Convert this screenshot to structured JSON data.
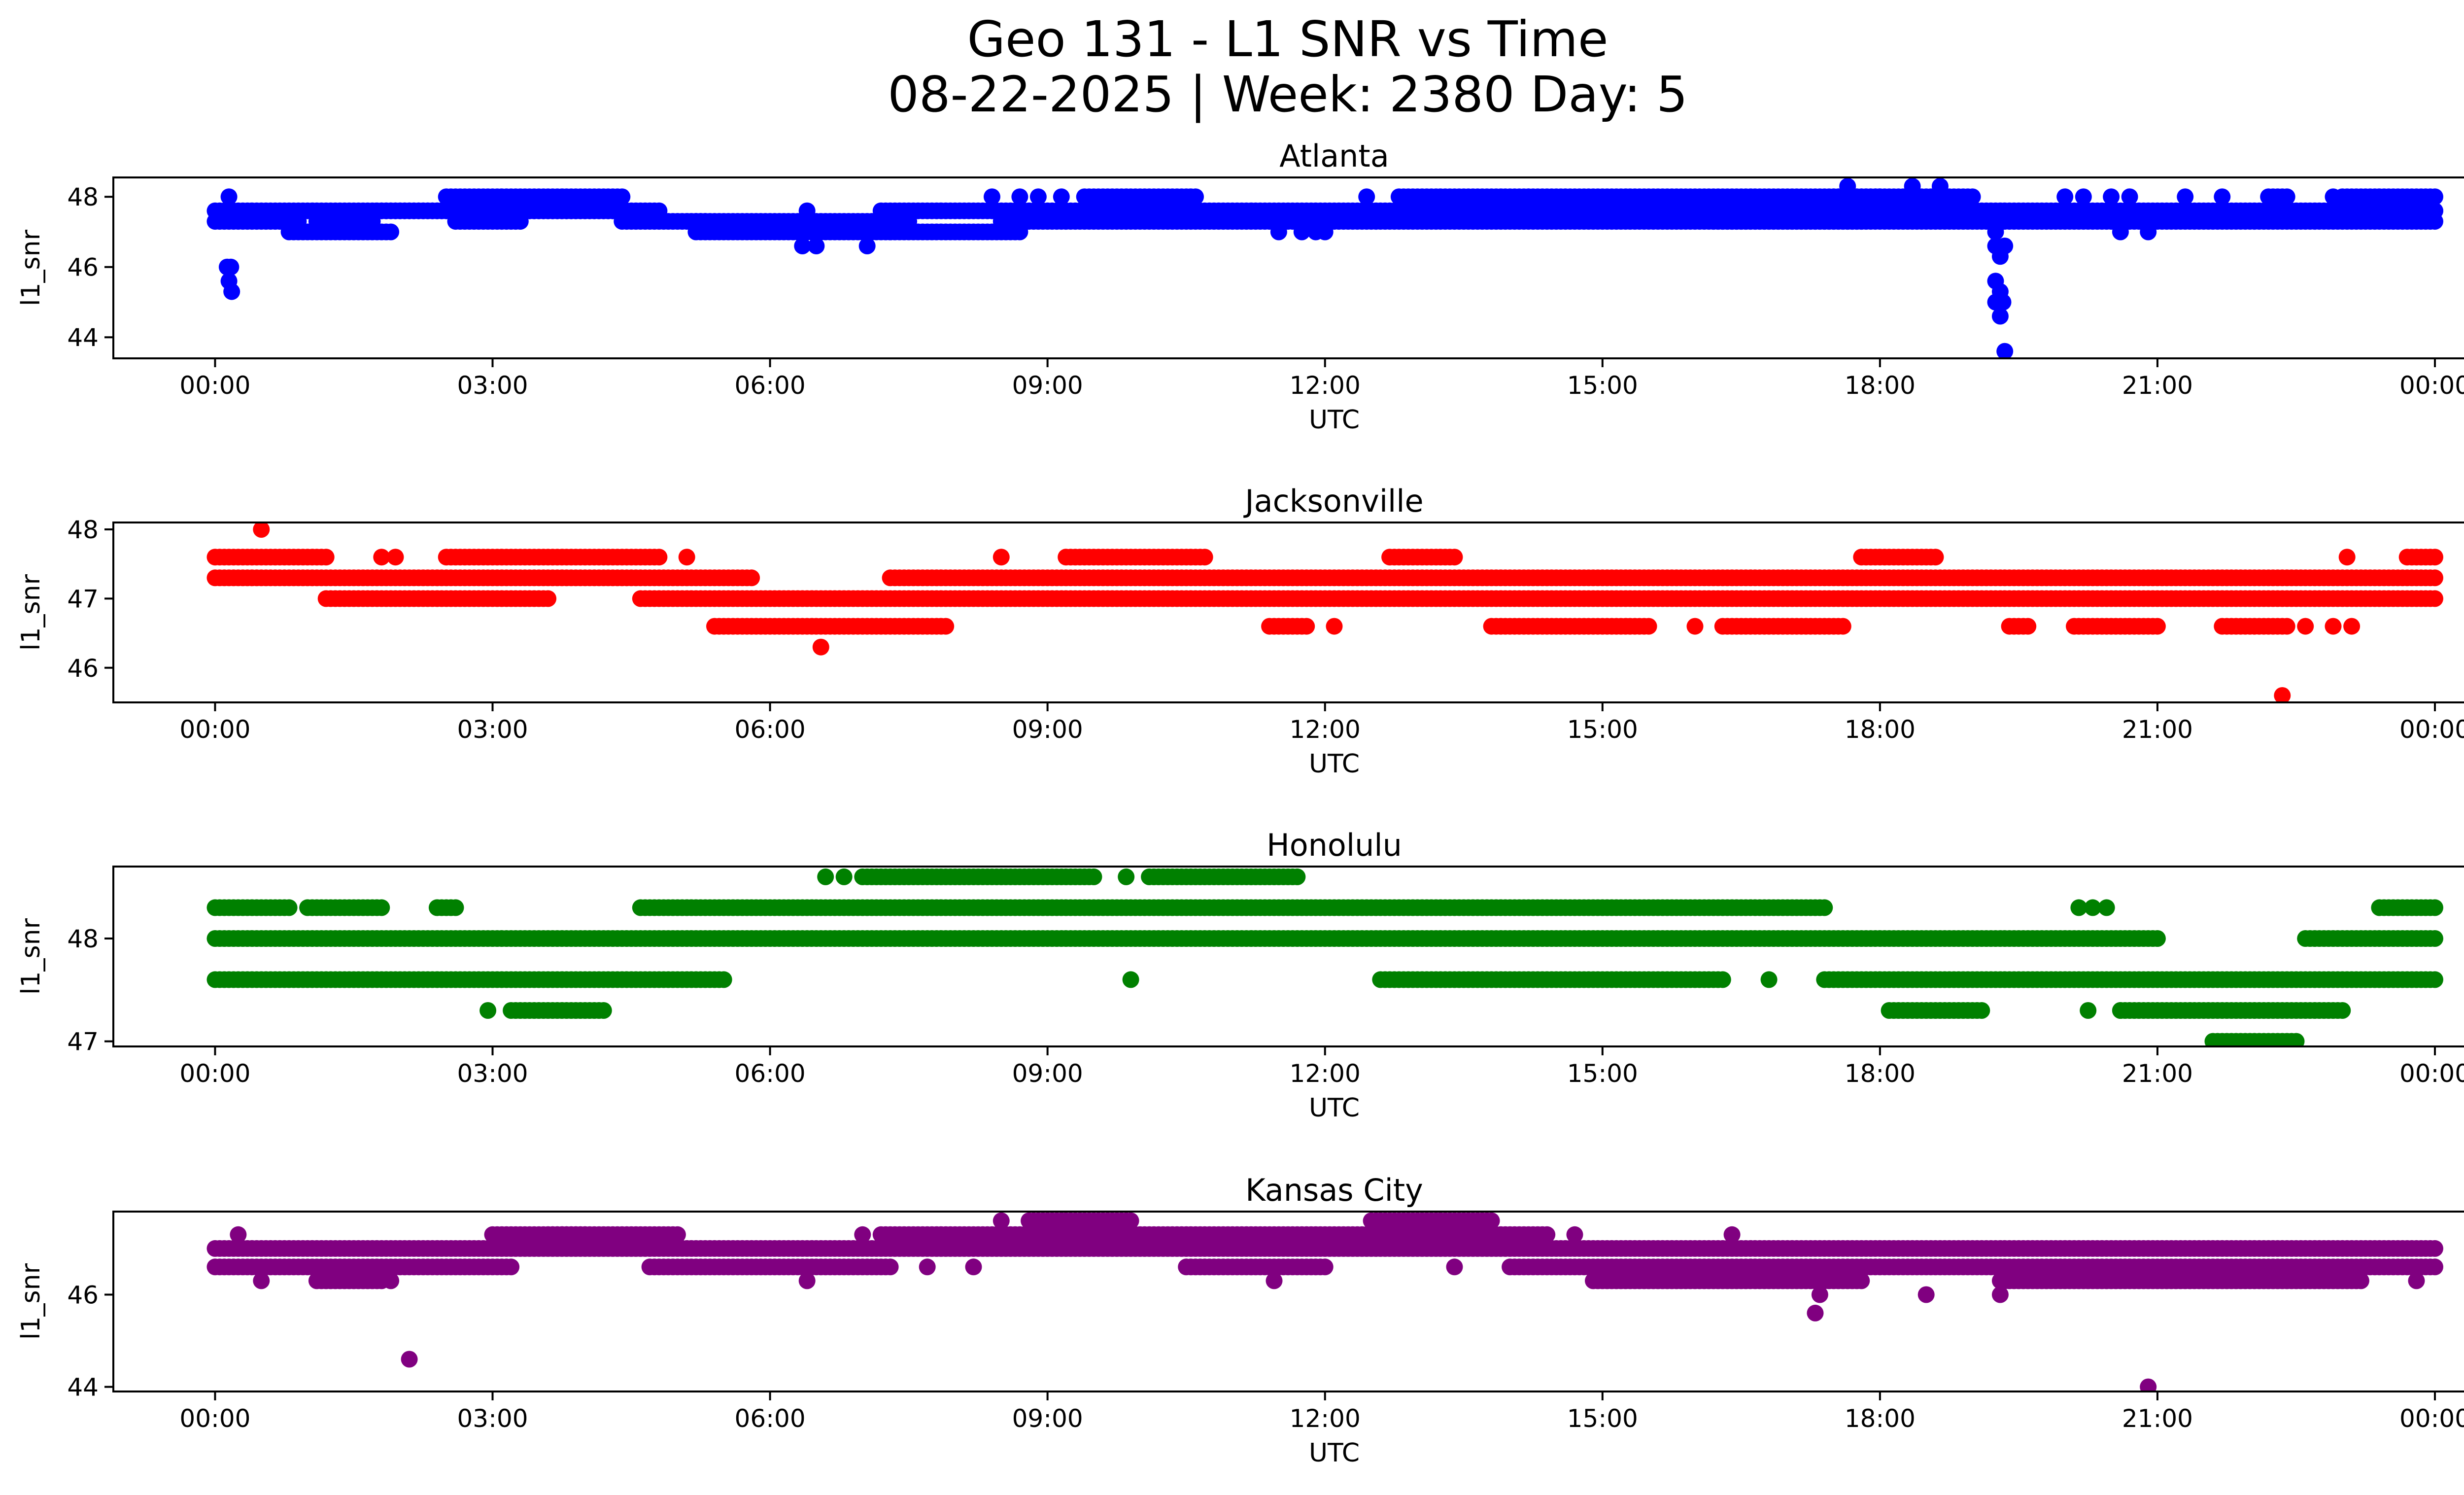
{
  "figure": {
    "title_line1": "Geo 131 - L1 SNR vs Time",
    "title_line2": "08-22-2025 | Week: 2380 Day: 5"
  },
  "chart_data": [
    {
      "type": "scatter",
      "title": "Atlanta",
      "xlabel": "UTC",
      "ylabel": "l1_snr",
      "color": "#0000ff",
      "x_ticks": [
        "00:00",
        "03:00",
        "06:00",
        "09:00",
        "12:00",
        "15:00",
        "18:00",
        "21:00",
        "00:00"
      ],
      "x_range_hours": [
        -1.1,
        25.3
      ],
      "ylim": [
        43.4,
        48.55
      ],
      "y_ticks": [
        44,
        46,
        48
      ],
      "levels": [
        47.0,
        47.3,
        47.6,
        48.0
      ],
      "segments": [
        {
          "start": 0.0,
          "end": 0.9,
          "level": 47.3
        },
        {
          "start": 0.0,
          "end": 4.8,
          "level": 47.6
        },
        {
          "start": 0.8,
          "end": 1.9,
          "level": 47.0
        },
        {
          "start": 1.1,
          "end": 1.7,
          "level": 47.3
        },
        {
          "start": 1.8,
          "end": 4.4,
          "level": 47.6
        },
        {
          "start": 2.5,
          "end": 4.4,
          "level": 48.0
        },
        {
          "start": 2.6,
          "end": 3.3,
          "level": 47.3
        },
        {
          "start": 4.4,
          "end": 5.3,
          "level": 47.3
        },
        {
          "start": 5.2,
          "end": 7.3,
          "level": 47.0
        },
        {
          "start": 5.2,
          "end": 7.5,
          "level": 47.3
        },
        {
          "start": 7.3,
          "end": 8.7,
          "level": 47.0
        },
        {
          "start": 7.2,
          "end": 24.0,
          "level": 47.6
        },
        {
          "start": 8.5,
          "end": 24.0,
          "level": 47.3
        },
        {
          "start": 9.4,
          "end": 10.6,
          "level": 48.0
        },
        {
          "start": 12.8,
          "end": 14.2,
          "level": 48.0
        },
        {
          "start": 14.2,
          "end": 18.0,
          "level": 48.0
        },
        {
          "start": 16.2,
          "end": 17.8,
          "level": 47.3
        },
        {
          "start": 17.5,
          "end": 19.0,
          "level": 48.0
        },
        {
          "start": 22.2,
          "end": 22.4,
          "level": 48.0
        },
        {
          "start": 23.0,
          "end": 24.0,
          "level": 48.0
        },
        {
          "start": 23.0,
          "end": 24.0,
          "level": 47.6
        }
      ],
      "extra_points": [
        {
          "x": 0.15,
          "y": 48.0
        },
        {
          "x": 0.17,
          "y": 46.0
        },
        {
          "x": 0.15,
          "y": 45.6
        },
        {
          "x": 0.18,
          "y": 45.3
        },
        {
          "x": 0.13,
          "y": 46.0
        },
        {
          "x": 6.35,
          "y": 46.6
        },
        {
          "x": 6.5,
          "y": 46.6
        },
        {
          "x": 7.05,
          "y": 46.6
        },
        {
          "x": 6.4,
          "y": 47.6
        },
        {
          "x": 8.4,
          "y": 48.0
        },
        {
          "x": 8.7,
          "y": 48.0
        },
        {
          "x": 8.9,
          "y": 48.0
        },
        {
          "x": 9.15,
          "y": 48.0
        },
        {
          "x": 11.5,
          "y": 47.0
        },
        {
          "x": 11.75,
          "y": 47.0
        },
        {
          "x": 11.9,
          "y": 47.0
        },
        {
          "x": 12.0,
          "y": 47.0
        },
        {
          "x": 12.45,
          "y": 48.0
        },
        {
          "x": 17.65,
          "y": 48.3
        },
        {
          "x": 18.35,
          "y": 48.3
        },
        {
          "x": 18.65,
          "y": 48.3
        },
        {
          "x": 17.65,
          "y": 47.3
        },
        {
          "x": 19.25,
          "y": 47.0
        },
        {
          "x": 19.25,
          "y": 46.6
        },
        {
          "x": 19.3,
          "y": 46.3
        },
        {
          "x": 19.25,
          "y": 45.6
        },
        {
          "x": 19.3,
          "y": 45.3
        },
        {
          "x": 19.25,
          "y": 45.0
        },
        {
          "x": 19.3,
          "y": 44.6
        },
        {
          "x": 19.35,
          "y": 43.6
        },
        {
          "x": 19.35,
          "y": 46.6
        },
        {
          "x": 19.33,
          "y": 45.0
        },
        {
          "x": 20.0,
          "y": 48.0
        },
        {
          "x": 20.2,
          "y": 48.0
        },
        {
          "x": 20.5,
          "y": 48.0
        },
        {
          "x": 20.7,
          "y": 48.0
        },
        {
          "x": 21.3,
          "y": 48.0
        },
        {
          "x": 20.6,
          "y": 47.0
        },
        {
          "x": 20.9,
          "y": 47.0
        },
        {
          "x": 21.7,
          "y": 48.0
        },
        {
          "x": 22.9,
          "y": 48.0
        }
      ]
    },
    {
      "type": "scatter",
      "title": "Jacksonville",
      "xlabel": "UTC",
      "ylabel": "l1_snr",
      "color": "#ff0000",
      "x_ticks": [
        "00:00",
        "03:00",
        "06:00",
        "09:00",
        "12:00",
        "15:00",
        "18:00",
        "21:00",
        "00:00"
      ],
      "x_range_hours": [
        -1.1,
        25.3
      ],
      "ylim": [
        45.5,
        48.1
      ],
      "y_ticks": [
        46,
        47,
        48
      ],
      "levels": [
        46.6,
        47.0,
        47.3,
        47.6
      ],
      "segments": [
        {
          "start": 0.0,
          "end": 1.2,
          "level": 47.6
        },
        {
          "start": 0.0,
          "end": 5.8,
          "level": 47.3
        },
        {
          "start": 1.2,
          "end": 3.6,
          "level": 47.0
        },
        {
          "start": 2.5,
          "end": 4.8,
          "level": 47.6
        },
        {
          "start": 4.6,
          "end": 24.0,
          "level": 47.0
        },
        {
          "start": 5.4,
          "end": 7.9,
          "level": 46.6
        },
        {
          "start": 7.3,
          "end": 24.0,
          "level": 47.3
        },
        {
          "start": 9.2,
          "end": 10.7,
          "level": 47.6
        },
        {
          "start": 11.4,
          "end": 11.8,
          "level": 46.6
        },
        {
          "start": 12.7,
          "end": 13.4,
          "level": 47.6
        },
        {
          "start": 13.8,
          "end": 15.5,
          "level": 46.6
        },
        {
          "start": 16.3,
          "end": 17.6,
          "level": 46.6
        },
        {
          "start": 17.8,
          "end": 18.6,
          "level": 47.6
        },
        {
          "start": 19.4,
          "end": 19.6,
          "level": 46.6
        },
        {
          "start": 20.1,
          "end": 21.0,
          "level": 46.6
        },
        {
          "start": 21.7,
          "end": 22.4,
          "level": 46.6
        },
        {
          "start": 23.7,
          "end": 24.0,
          "level": 47.6
        }
      ],
      "extra_points": [
        {
          "x": 0.5,
          "y": 48.0
        },
        {
          "x": 1.8,
          "y": 47.6
        },
        {
          "x": 1.95,
          "y": 47.6
        },
        {
          "x": 5.1,
          "y": 47.6
        },
        {
          "x": 6.55,
          "y": 46.3
        },
        {
          "x": 8.5,
          "y": 47.6
        },
        {
          "x": 12.1,
          "y": 46.6
        },
        {
          "x": 16.0,
          "y": 46.6
        },
        {
          "x": 22.35,
          "y": 45.6
        },
        {
          "x": 22.6,
          "y": 46.6
        },
        {
          "x": 22.9,
          "y": 46.6
        },
        {
          "x": 23.1,
          "y": 46.6
        },
        {
          "x": 23.05,
          "y": 47.6
        }
      ]
    },
    {
      "type": "scatter",
      "title": "Honolulu",
      "xlabel": "UTC",
      "ylabel": "l1_snr",
      "color": "#008000",
      "x_ticks": [
        "00:00",
        "03:00",
        "06:00",
        "09:00",
        "12:00",
        "15:00",
        "18:00",
        "21:00",
        "00:00"
      ],
      "x_range_hours": [
        -1.1,
        25.3
      ],
      "ylim": [
        46.95,
        48.7
      ],
      "y_ticks": [
        47,
        48
      ],
      "levels": [
        47.0,
        47.3,
        47.6,
        48.0,
        48.3,
        48.6
      ],
      "segments": [
        {
          "start": 0.0,
          "end": 0.8,
          "level": 48.3
        },
        {
          "start": 1.0,
          "end": 1.8,
          "level": 48.3
        },
        {
          "start": 2.4,
          "end": 2.6,
          "level": 48.3
        },
        {
          "start": 0.0,
          "end": 21.0,
          "level": 48.0
        },
        {
          "start": 0.0,
          "end": 5.5,
          "level": 47.6
        },
        {
          "start": 3.2,
          "end": 4.2,
          "level": 47.3
        },
        {
          "start": 4.6,
          "end": 17.4,
          "level": 48.3
        },
        {
          "start": 7.0,
          "end": 9.5,
          "level": 48.6
        },
        {
          "start": 10.1,
          "end": 11.7,
          "level": 48.6
        },
        {
          "start": 12.6,
          "end": 16.3,
          "level": 47.6
        },
        {
          "start": 17.4,
          "end": 24.0,
          "level": 47.6
        },
        {
          "start": 18.1,
          "end": 19.1,
          "level": 47.3
        },
        {
          "start": 20.6,
          "end": 23.0,
          "level": 47.3
        },
        {
          "start": 21.6,
          "end": 22.5,
          "level": 47.0
        },
        {
          "start": 22.6,
          "end": 24.0,
          "level": 48.0
        },
        {
          "start": 23.4,
          "end": 24.0,
          "level": 48.3
        }
      ],
      "extra_points": [
        {
          "x": 2.95,
          "y": 47.3
        },
        {
          "x": 6.6,
          "y": 48.6
        },
        {
          "x": 6.8,
          "y": 48.6
        },
        {
          "x": 9.85,
          "y": 48.6
        },
        {
          "x": 9.9,
          "y": 47.6
        },
        {
          "x": 16.8,
          "y": 47.6
        },
        {
          "x": 20.15,
          "y": 48.3
        },
        {
          "x": 20.3,
          "y": 48.3
        },
        {
          "x": 20.45,
          "y": 48.3
        },
        {
          "x": 20.25,
          "y": 47.3
        },
        {
          "x": 20.6,
          "y": 47.3
        }
      ]
    },
    {
      "type": "scatter",
      "title": "Kansas City",
      "xlabel": "UTC",
      "ylabel": "l1_snr",
      "color": "#800080",
      "x_ticks": [
        "00:00",
        "03:00",
        "06:00",
        "09:00",
        "12:00",
        "15:00",
        "18:00",
        "21:00",
        "00:00"
      ],
      "x_range_hours": [
        -1.1,
        25.3
      ],
      "ylim": [
        43.9,
        47.8
      ],
      "y_ticks": [
        44,
        46
      ],
      "levels": [
        46.3,
        46.6,
        47.0,
        47.3,
        47.6
      ],
      "segments": [
        {
          "start": 0.0,
          "end": 24.0,
          "level": 47.0
        },
        {
          "start": 0.0,
          "end": 3.2,
          "level": 46.6
        },
        {
          "start": 1.1,
          "end": 1.8,
          "level": 46.3
        },
        {
          "start": 3.0,
          "end": 4.0,
          "level": 47.3
        },
        {
          "start": 3.6,
          "end": 5.0,
          "level": 47.3
        },
        {
          "start": 4.7,
          "end": 7.3,
          "level": 46.6
        },
        {
          "start": 7.2,
          "end": 14.4,
          "level": 47.3
        },
        {
          "start": 8.8,
          "end": 9.9,
          "level": 47.6
        },
        {
          "start": 10.5,
          "end": 12.0,
          "level": 46.6
        },
        {
          "start": 12.5,
          "end": 13.8,
          "level": 47.6
        },
        {
          "start": 14.0,
          "end": 24.0,
          "level": 46.6
        },
        {
          "start": 14.9,
          "end": 17.8,
          "level": 46.3
        },
        {
          "start": 19.3,
          "end": 23.2,
          "level": 46.3
        }
      ],
      "extra_points": [
        {
          "x": 0.25,
          "y": 47.3
        },
        {
          "x": 0.5,
          "y": 46.3
        },
        {
          "x": 2.1,
          "y": 44.6
        },
        {
          "x": 1.9,
          "y": 46.3
        },
        {
          "x": 6.4,
          "y": 46.3
        },
        {
          "x": 7.0,
          "y": 47.3
        },
        {
          "x": 7.7,
          "y": 46.6
        },
        {
          "x": 8.2,
          "y": 46.6
        },
        {
          "x": 8.5,
          "y": 47.6
        },
        {
          "x": 11.45,
          "y": 46.3
        },
        {
          "x": 13.4,
          "y": 46.6
        },
        {
          "x": 14.7,
          "y": 47.3
        },
        {
          "x": 16.4,
          "y": 47.3
        },
        {
          "x": 17.3,
          "y": 45.6
        },
        {
          "x": 17.35,
          "y": 46.0
        },
        {
          "x": 18.5,
          "y": 46.0
        },
        {
          "x": 19.3,
          "y": 46.0
        },
        {
          "x": 20.9,
          "y": 44.0
        },
        {
          "x": 23.8,
          "y": 46.3
        }
      ]
    }
  ]
}
